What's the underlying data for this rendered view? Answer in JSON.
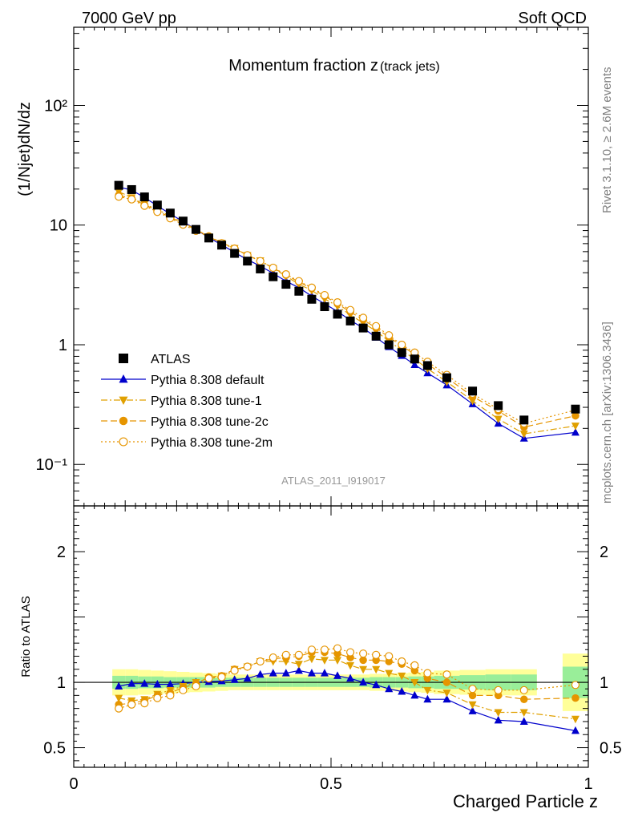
{
  "header": {
    "left": "7000 GeV pp",
    "right": "Soft QCD"
  },
  "side_labels": {
    "rivet": "Rivet 3.1.10, ≥ 2.6M events",
    "mcplots": "mcplots.cern.ch [arXiv:1306.3436]"
  },
  "analysis_id": "ATLAS_2011_I919017",
  "chart_data": [
    {
      "type": "scatter",
      "panel": "main",
      "title": "Momentum fraction z",
      "title_suffix": "(track jets)",
      "ylabel": "(1/Njet)dN/dz",
      "y_scale": "log",
      "ylim": [
        0.045,
        450
      ],
      "xlim": [
        0,
        1
      ],
      "y_tick_labels": [
        "10⁻¹",
        "1",
        "10",
        "10²"
      ],
      "y_tick_values": [
        0.1,
        1,
        10,
        100
      ],
      "legend_position": "middle-left",
      "x": [
        0.0875,
        0.1125,
        0.1375,
        0.1625,
        0.1875,
        0.2125,
        0.2375,
        0.2625,
        0.2875,
        0.3125,
        0.3375,
        0.3625,
        0.3875,
        0.4125,
        0.4375,
        0.4625,
        0.4875,
        0.5125,
        0.5375,
        0.5625,
        0.5875,
        0.6125,
        0.6375,
        0.6625,
        0.6875,
        0.725,
        0.775,
        0.825,
        0.875,
        0.975
      ],
      "series": [
        {
          "name": "ATLAS",
          "marker": "square",
          "color": "#000000",
          "line": "none",
          "values": [
            21.5,
            19.8,
            17.2,
            14.7,
            12.6,
            10.8,
            9.2,
            7.8,
            6.8,
            5.8,
            5.0,
            4.3,
            3.7,
            3.2,
            2.8,
            2.4,
            2.08,
            1.8,
            1.58,
            1.38,
            1.18,
            1.0,
            0.86,
            0.76,
            0.67,
            0.53,
            0.41,
            0.31,
            0.235,
            0.29
          ]
        },
        {
          "name": "Pythia 8.308 default",
          "marker": "triangle-up",
          "color": "#0000cc",
          "line": "solid",
          "values": [
            20.8,
            19.6,
            17.0,
            14.5,
            12.4,
            10.7,
            9.2,
            7.85,
            6.85,
            5.9,
            5.15,
            4.55,
            3.95,
            3.4,
            3.0,
            2.55,
            2.2,
            1.9,
            1.6,
            1.38,
            1.15,
            0.96,
            0.81,
            0.68,
            0.58,
            0.46,
            0.32,
            0.22,
            0.165,
            0.185
          ]
        },
        {
          "name": "Pythia 8.308 tune-1",
          "marker": "triangle-down",
          "color": "#e0a000",
          "line": "dashdot",
          "values": [
            19.0,
            17.0,
            15.0,
            13.5,
            11.9,
            10.5,
            9.2,
            8.0,
            7.1,
            6.4,
            5.6,
            5.05,
            4.35,
            3.75,
            3.2,
            2.85,
            2.42,
            2.1,
            1.78,
            1.52,
            1.3,
            1.07,
            0.9,
            0.76,
            0.63,
            0.49,
            0.34,
            0.24,
            0.18,
            0.21
          ]
        },
        {
          "name": "Pythia 8.308 tune-2c",
          "marker": "circle",
          "color": "#e69500",
          "line": "dashed",
          "values": [
            17.8,
            16.7,
            14.8,
            13.2,
            11.6,
            10.4,
            9.1,
            8.1,
            7.1,
            6.4,
            5.6,
            5.0,
            4.38,
            3.82,
            3.35,
            2.95,
            2.55,
            2.2,
            1.88,
            1.62,
            1.38,
            1.16,
            0.98,
            0.83,
            0.69,
            0.53,
            0.37,
            0.28,
            0.205,
            0.255
          ]
        },
        {
          "name": "Pythia 8.308 tune-2m",
          "marker": "circle-open",
          "color": "#e69500",
          "line": "dotted",
          "values": [
            17.3,
            16.4,
            14.5,
            12.9,
            11.4,
            10.1,
            8.95,
            8.0,
            7.05,
            6.35,
            5.6,
            5.0,
            4.4,
            3.88,
            3.4,
            3.0,
            2.6,
            2.26,
            1.95,
            1.68,
            1.43,
            1.2,
            1.0,
            0.86,
            0.72,
            0.56,
            0.39,
            0.29,
            0.22,
            0.285
          ]
        }
      ]
    },
    {
      "type": "scatter",
      "panel": "ratio",
      "ylabel": "Ratio to ATLAS",
      "xlabel": "Charged Particle z",
      "ylim": [
        0.35,
        2.35
      ],
      "xlim": [
        0,
        1
      ],
      "x_tick_labels": [
        "0",
        "0.5",
        "1"
      ],
      "x_tick_values": [
        0,
        0.5,
        1
      ],
      "y_tick_labels": [
        "0.5",
        "1",
        "2"
      ],
      "y_tick_values": [
        0.5,
        1,
        2
      ],
      "x": [
        0.0875,
        0.1125,
        0.1375,
        0.1625,
        0.1875,
        0.2125,
        0.2375,
        0.2625,
        0.2875,
        0.3125,
        0.3375,
        0.3625,
        0.3875,
        0.4125,
        0.4375,
        0.4625,
        0.4875,
        0.5125,
        0.5375,
        0.5625,
        0.5875,
        0.6125,
        0.6375,
        0.6625,
        0.6875,
        0.725,
        0.775,
        0.825,
        0.875,
        0.975
      ],
      "bins": [
        [
          0.075,
          0.1
        ],
        [
          0.1,
          0.125
        ],
        [
          0.125,
          0.15
        ],
        [
          0.15,
          0.175
        ],
        [
          0.175,
          0.2
        ],
        [
          0.2,
          0.225
        ],
        [
          0.225,
          0.25
        ],
        [
          0.25,
          0.275
        ],
        [
          0.275,
          0.3
        ],
        [
          0.3,
          0.325
        ],
        [
          0.325,
          0.35
        ],
        [
          0.35,
          0.375
        ],
        [
          0.375,
          0.4
        ],
        [
          0.4,
          0.425
        ],
        [
          0.425,
          0.45
        ],
        [
          0.45,
          0.475
        ],
        [
          0.475,
          0.5
        ],
        [
          0.5,
          0.525
        ],
        [
          0.525,
          0.55
        ],
        [
          0.55,
          0.575
        ],
        [
          0.575,
          0.6
        ],
        [
          0.6,
          0.625
        ],
        [
          0.625,
          0.65
        ],
        [
          0.65,
          0.675
        ],
        [
          0.675,
          0.7
        ],
        [
          0.7,
          0.75
        ],
        [
          0.75,
          0.8
        ],
        [
          0.8,
          0.85
        ],
        [
          0.85,
          0.9
        ],
        [
          0.95,
          1.0
        ]
      ],
      "band_stat": [
        0.05,
        0.05,
        0.045,
        0.045,
        0.04,
        0.04,
        0.04,
        0.04,
        0.035,
        0.035,
        0.035,
        0.035,
        0.035,
        0.035,
        0.035,
        0.035,
        0.035,
        0.035,
        0.035,
        0.035,
        0.04,
        0.04,
        0.04,
        0.045,
        0.045,
        0.05,
        0.055,
        0.06,
        0.06,
        0.12
      ],
      "band_total": [
        0.1,
        0.1,
        0.095,
        0.09,
        0.085,
        0.08,
        0.075,
        0.07,
        0.065,
        0.06,
        0.06,
        0.06,
        0.06,
        0.06,
        0.06,
        0.06,
        0.06,
        0.06,
        0.06,
        0.06,
        0.065,
        0.065,
        0.07,
        0.075,
        0.08,
        0.09,
        0.095,
        0.1,
        0.1,
        0.22
      ],
      "band_colors": {
        "stat": "#99ee99",
        "total": "#ffff99"
      },
      "series": [
        {
          "name": "Pythia 8.308 default",
          "marker": "triangle-up",
          "color": "#0000cc",
          "line": "solid",
          "values": [
            0.97,
            0.99,
            0.99,
            0.985,
            0.985,
            0.99,
            1.0,
            1.005,
            1.01,
            1.02,
            1.03,
            1.06,
            1.07,
            1.07,
            1.09,
            1.07,
            1.07,
            1.05,
            1.03,
            1.0,
            0.98,
            0.95,
            0.93,
            0.9,
            0.87,
            0.87,
            0.78,
            0.71,
            0.7,
            0.63
          ]
        },
        {
          "name": "Pythia 8.308 tune-1",
          "marker": "triangle-down",
          "color": "#e0a000",
          "line": "dashdot",
          "values": [
            0.88,
            0.86,
            0.87,
            0.91,
            0.94,
            0.97,
            1.0,
            1.03,
            1.05,
            1.1,
            1.12,
            1.16,
            1.16,
            1.16,
            1.14,
            1.18,
            1.17,
            1.17,
            1.13,
            1.1,
            1.1,
            1.07,
            1.05,
            1.0,
            0.94,
            0.92,
            0.83,
            0.77,
            0.77,
            0.72
          ]
        },
        {
          "name": "Pythia 8.308 tune-2c",
          "marker": "circle",
          "color": "#e69500",
          "line": "dashed",
          "values": [
            0.83,
            0.84,
            0.86,
            0.9,
            0.92,
            0.96,
            0.99,
            1.04,
            1.05,
            1.1,
            1.12,
            1.16,
            1.18,
            1.19,
            1.2,
            1.23,
            1.23,
            1.22,
            1.19,
            1.17,
            1.17,
            1.16,
            1.14,
            1.09,
            1.03,
            1.0,
            0.9,
            0.9,
            0.87,
            0.88
          ]
        },
        {
          "name": "Pythia 8.308 tune-2m",
          "marker": "circle-open",
          "color": "#e69500",
          "line": "dotted",
          "values": [
            0.8,
            0.83,
            0.84,
            0.88,
            0.9,
            0.94,
            0.97,
            1.03,
            1.04,
            1.09,
            1.12,
            1.16,
            1.19,
            1.21,
            1.21,
            1.25,
            1.25,
            1.26,
            1.23,
            1.22,
            1.21,
            1.2,
            1.16,
            1.13,
            1.07,
            1.06,
            0.95,
            0.94,
            0.94,
            0.98
          ]
        }
      ]
    }
  ]
}
